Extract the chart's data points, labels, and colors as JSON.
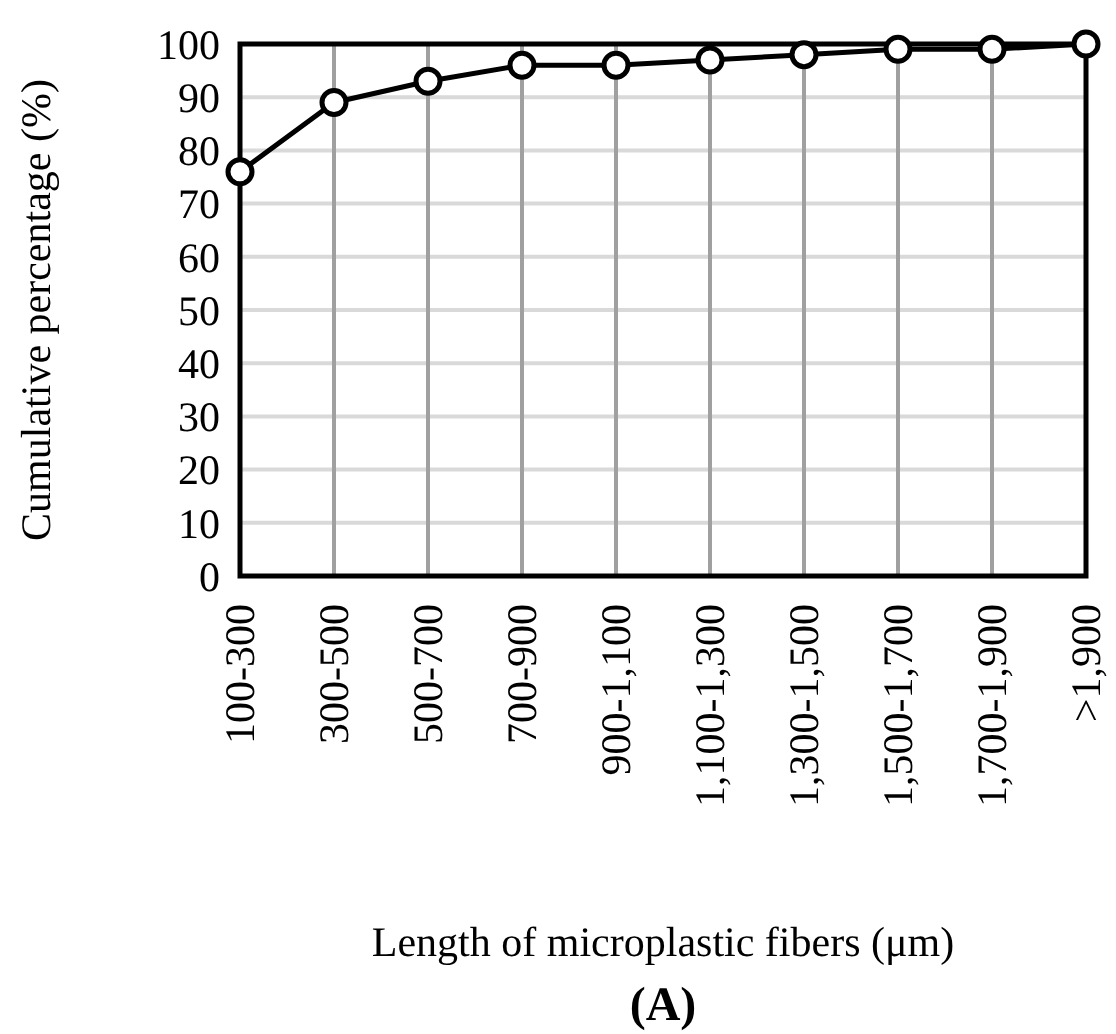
{
  "chart_data": {
    "type": "line",
    "title": "(A)",
    "xlabel": "Length of microplastic fibers (μm)",
    "ylabel": "Cumulative percentage (%)",
    "categories": [
      "100-300",
      "300-500",
      "500-700",
      "700-900",
      "900-1,100",
      "1,100-1,300",
      "1,300-1,500",
      "1,500-1,700",
      "1,700-1,900",
      ">1,900"
    ],
    "series": [
      {
        "color": "#000000",
        "values": [
          76,
          89,
          93,
          96,
          96,
          97,
          98,
          99,
          99,
          100
        ]
      }
    ],
    "ylim": [
      0,
      100
    ],
    "yticks": [
      0,
      10,
      20,
      30,
      40,
      50,
      60,
      70,
      80,
      90,
      100
    ],
    "grid": true,
    "marker": "circle",
    "line_style": "solid"
  }
}
